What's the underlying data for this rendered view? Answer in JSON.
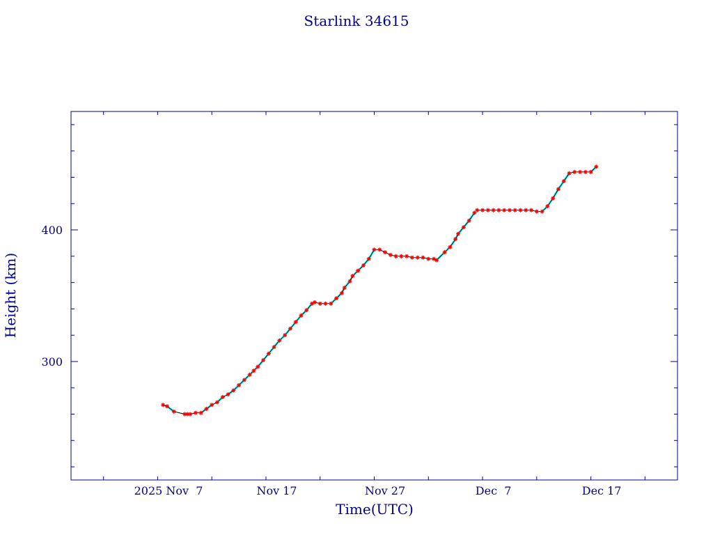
{
  "chart_data": {
    "type": "line",
    "title": "Starlink 34615",
    "xlabel": "Time(UTC)",
    "ylabel": "Height (km)",
    "x_ticks": [
      {
        "label": "2025 Nov  7",
        "date": "2025-11-07"
      },
      {
        "label": "Nov 17",
        "date": "2025-11-17"
      },
      {
        "label": "Nov 27",
        "date": "2025-11-27"
      },
      {
        "label": "Dec  7",
        "date": "2025-12-07"
      },
      {
        "label": "Dec 17",
        "date": "2025-12-17"
      }
    ],
    "y_ticks": [
      300,
      400
    ],
    "xlim": [
      "2025-10-29",
      "2025-12-24"
    ],
    "ylim": [
      210,
      490
    ],
    "grid": false,
    "colors": {
      "axes": "#00008b",
      "line": "#000000",
      "markers": "#ff0000",
      "fill_segments": "#00ffff"
    },
    "series": [
      {
        "marker": "asterisk",
        "points": [
          [
            "2025-11-06T12:00",
            267
          ],
          [
            "2025-11-06T21:00",
            266
          ],
          [
            "2025-11-07T12:00",
            262
          ],
          [
            "2025-11-08T12:00",
            260
          ],
          [
            "2025-11-08T18:00",
            260
          ],
          [
            "2025-11-09T00:00",
            260
          ],
          [
            "2025-11-09T12:00",
            261
          ],
          [
            "2025-11-10T00:00",
            261
          ],
          [
            "2025-11-10T12:00",
            264
          ],
          [
            "2025-11-11T00:00",
            267
          ],
          [
            "2025-11-11T12:00",
            269
          ],
          [
            "2025-11-12T00:00",
            273
          ],
          [
            "2025-11-12T12:00",
            275
          ],
          [
            "2025-11-13T00:00",
            278
          ],
          [
            "2025-11-13T12:00",
            282
          ],
          [
            "2025-11-14T00:00",
            286
          ],
          [
            "2025-11-14T12:00",
            290
          ],
          [
            "2025-11-14T21:00",
            293
          ],
          [
            "2025-11-15T06:00",
            296
          ],
          [
            "2025-11-15T18:00",
            301
          ],
          [
            "2025-11-16T06:00",
            306
          ],
          [
            "2025-11-16T18:00",
            311
          ],
          [
            "2025-11-17T06:00",
            316
          ],
          [
            "2025-11-17T18:00",
            320
          ],
          [
            "2025-11-18T06:00",
            325
          ],
          [
            "2025-11-18T18:00",
            330
          ],
          [
            "2025-11-19T06:00",
            335
          ],
          [
            "2025-11-19T18:00",
            339
          ],
          [
            "2025-11-20T06:00",
            344
          ],
          [
            "2025-11-20T12:00",
            345
          ],
          [
            "2025-11-21T00:00",
            344
          ],
          [
            "2025-11-21T12:00",
            344
          ],
          [
            "2025-11-22T00:00",
            344
          ],
          [
            "2025-11-22T12:00",
            348
          ],
          [
            "2025-11-23T00:00",
            352
          ],
          [
            "2025-11-23T06:00",
            356
          ],
          [
            "2025-11-23T18:00",
            361
          ],
          [
            "2025-11-24T00:00",
            365
          ],
          [
            "2025-11-24T12:00",
            369
          ],
          [
            "2025-11-25T00:00",
            373
          ],
          [
            "2025-11-25T12:00",
            378
          ],
          [
            "2025-11-26T00:00",
            385
          ],
          [
            "2025-11-26T12:00",
            385
          ],
          [
            "2025-11-27T00:00",
            383
          ],
          [
            "2025-11-27T12:00",
            381
          ],
          [
            "2025-11-28T00:00",
            380
          ],
          [
            "2025-11-28T12:00",
            380
          ],
          [
            "2025-11-29T00:00",
            380
          ],
          [
            "2025-11-29T12:00",
            379
          ],
          [
            "2025-11-30T00:00",
            379
          ],
          [
            "2025-11-30T12:00",
            379
          ],
          [
            "2025-12-01T00:00",
            378
          ],
          [
            "2025-12-01T12:00",
            378
          ],
          [
            "2025-12-01T18:00",
            377
          ],
          [
            "2025-12-02T12:00",
            383
          ],
          [
            "2025-12-03T00:00",
            387
          ],
          [
            "2025-12-03T12:00",
            393
          ],
          [
            "2025-12-03T18:00",
            397
          ],
          [
            "2025-12-04T06:00",
            402
          ],
          [
            "2025-12-04T18:00",
            407
          ],
          [
            "2025-12-05T06:00",
            413
          ],
          [
            "2025-12-05T12:00",
            415
          ],
          [
            "2025-12-06T00:00",
            415
          ],
          [
            "2025-12-06T12:00",
            415
          ],
          [
            "2025-12-07T00:00",
            415
          ],
          [
            "2025-12-07T12:00",
            415
          ],
          [
            "2025-12-08T00:00",
            415
          ],
          [
            "2025-12-08T12:00",
            415
          ],
          [
            "2025-12-09T00:00",
            415
          ],
          [
            "2025-12-09T12:00",
            415
          ],
          [
            "2025-12-10T00:00",
            415
          ],
          [
            "2025-12-10T12:00",
            415
          ],
          [
            "2025-12-11T00:00",
            414
          ],
          [
            "2025-12-11T12:00",
            414
          ],
          [
            "2025-12-12T00:00",
            418
          ],
          [
            "2025-12-12T12:00",
            424
          ],
          [
            "2025-12-13T00:00",
            431
          ],
          [
            "2025-12-13T12:00",
            437
          ],
          [
            "2025-12-14T00:00",
            443
          ],
          [
            "2025-12-14T12:00",
            444
          ],
          [
            "2025-12-15T00:00",
            444
          ],
          [
            "2025-12-15T12:00",
            444
          ],
          [
            "2025-12-16T00:00",
            444
          ],
          [
            "2025-12-16T12:00",
            448
          ]
        ]
      }
    ]
  }
}
